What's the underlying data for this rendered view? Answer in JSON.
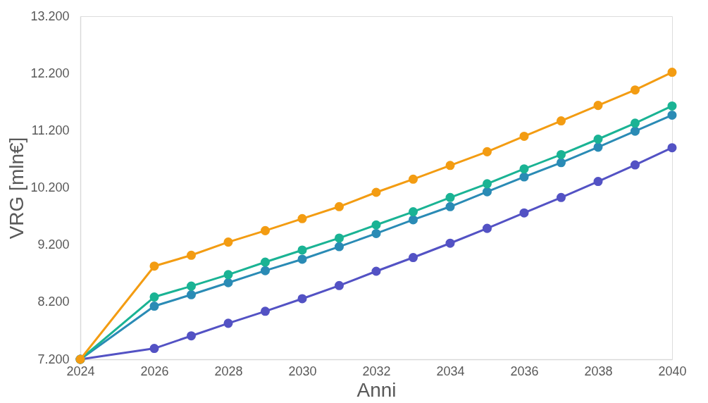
{
  "chart_data": {
    "type": "line",
    "xlabel": "Anni",
    "ylabel": "VRG [mln€]",
    "x": [
      2024,
      2026,
      2027,
      2028,
      2029,
      2030,
      2031,
      2032,
      2033,
      2034,
      2035,
      2036,
      2037,
      2038,
      2039,
      2040
    ],
    "xlim": [
      2024,
      2040
    ],
    "xticks": [
      2024,
      2026,
      2028,
      2030,
      2032,
      2034,
      2036,
      2038,
      2040
    ],
    "ylim": [
      7200,
      13200
    ],
    "yticks": [
      {
        "value": 7200,
        "label": "7.200"
      },
      {
        "value": 8200,
        "label": "8.200"
      },
      {
        "value": 9200,
        "label": "9.200"
      },
      {
        "value": 10200,
        "label": "10.200"
      },
      {
        "value": 11200,
        "label": "11.200"
      },
      {
        "value": 12200,
        "label": "12.200"
      },
      {
        "value": 13200,
        "label": "13.200"
      }
    ],
    "grid": false,
    "marker": "circle",
    "line_style": "solid",
    "series": [
      {
        "color": "#5352c4",
        "values": [
          7200,
          7390,
          7610,
          7830,
          8040,
          8260,
          8490,
          8740,
          8980,
          9230,
          9490,
          9760,
          10030,
          10310,
          10600,
          10900
        ]
      },
      {
        "color": "#2a8bb5",
        "values": [
          7200,
          8130,
          8330,
          8540,
          8750,
          8950,
          9170,
          9400,
          9640,
          9870,
          10130,
          10390,
          10640,
          10910,
          11190,
          11470
        ]
      },
      {
        "color": "#1ab394",
        "values": [
          7200,
          8290,
          8480,
          8680,
          8900,
          9110,
          9320,
          9550,
          9780,
          10030,
          10270,
          10530,
          10780,
          11050,
          11330,
          11630
        ]
      },
      {
        "color": "#f39c12",
        "values": [
          7200,
          8830,
          9020,
          9250,
          9450,
          9660,
          9870,
          10120,
          10350,
          10590,
          10830,
          11100,
          11370,
          11640,
          11910,
          12220
        ]
      }
    ]
  }
}
